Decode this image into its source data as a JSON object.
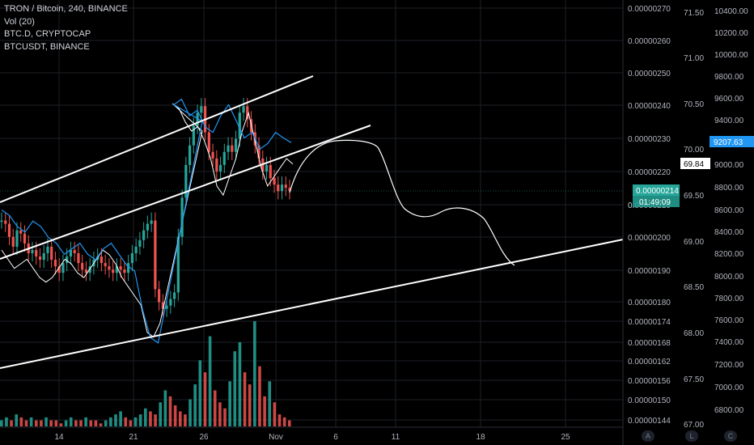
{
  "legend": [
    "TRON / Bitcoin, 240, BINANCE",
    "Vol (20)",
    "BTC.D, CRYPTOCAP",
    "BTCUSDT, BINANCE"
  ],
  "buttons": {
    "auto": "A",
    "log": "L",
    "compare": "C"
  },
  "colors": {
    "up": "#26a69a",
    "down": "#ef5350",
    "btcd": "#ffffff",
    "btcusdt": "#2196f3",
    "grid": "#1c1f26",
    "axis_text": "#b2b5be",
    "badge_green": "#26a69a",
    "badge_blue": "#2196f3"
  },
  "chart_data": {
    "type": "line",
    "x_ticks": [
      "14",
      "21",
      "26",
      "Nov",
      "6",
      "11",
      "18",
      "25"
    ],
    "x_range_days": [
      "Oct 9",
      "Nov 29"
    ],
    "price_axis": {
      "ticks": [
        "0.00000270",
        "0.00000260",
        "0.00000250",
        "0.00000240",
        "0.00000230",
        "0.00000220",
        "0.00000210",
        "0.00000200",
        "0.00000190",
        "0.00000180",
        "0.00000174",
        "0.00000168",
        "0.00000162",
        "0.00000156",
        "0.00000150",
        "0.00000144"
      ],
      "last_price": "0.00000214",
      "countdown": "01:49:09"
    },
    "btcd_axis": {
      "ticks": [
        "71.50",
        "71.00",
        "70.50",
        "70.00",
        "69.50",
        "69.00",
        "68.50",
        "68.00",
        "67.50",
        "67.00"
      ],
      "last_value": "69.84"
    },
    "btcusdt_axis": {
      "ticks": [
        "10400.00",
        "10200.00",
        "10000.00",
        "9800.00",
        "9600.00",
        "9400.00",
        "9200.00",
        "9000.00",
        "8800.00",
        "8600.00",
        "8400.00",
        "8200.00",
        "8000.00",
        "7800.00",
        "7600.00",
        "7400.00",
        "7200.00",
        "7000.00",
        "6800.00"
      ],
      "last_value": "9207.63"
    },
    "price_series": [
      205,
      204,
      200,
      197,
      202,
      201,
      198,
      195,
      196,
      194,
      193,
      195,
      197,
      193,
      191,
      189,
      192,
      194,
      196,
      195,
      192,
      190,
      189,
      191,
      193,
      194,
      192,
      191,
      190,
      189,
      191,
      190,
      189,
      192,
      195,
      197,
      199,
      202,
      204,
      205,
      184,
      180,
      178,
      179,
      181,
      183,
      200,
      212,
      222,
      228,
      234,
      238,
      240,
      232,
      226,
      224,
      220,
      222,
      226,
      228,
      226,
      230,
      238,
      240,
      236,
      232,
      228,
      224,
      220,
      222,
      218,
      216,
      214,
      216,
      215,
      214
    ],
    "btcd_series": [
      68.9,
      68.8,
      68.7,
      68.75,
      68.8,
      68.7,
      68.6,
      68.55,
      68.6,
      68.7,
      68.8,
      68.75,
      68.65,
      68.6,
      68.7,
      68.8,
      68.9,
      68.85,
      68.75,
      68.6,
      68.5,
      68.4,
      68.3,
      68.0,
      67.95,
      68.1,
      70.2,
      70.5,
      70.45,
      70.3,
      70.2,
      70.25,
      70.1,
      69.9,
      69.6,
      69.5,
      69.7,
      69.9,
      70.2,
      70.4,
      70.1,
      69.8,
      69.6,
      69.7,
      69.8,
      69.9,
      69.84
    ],
    "btcusdt_series": [
      8600,
      8550,
      8450,
      8400,
      8500,
      8450,
      8350,
      8300,
      8200,
      8250,
      8300,
      8200,
      8150,
      8250,
      8300,
      8200,
      8100,
      8050,
      7700,
      7450,
      7400,
      9400,
      9550,
      9600,
      9450,
      9500,
      9350,
      9300,
      9450,
      9550,
      9400,
      9250,
      9300,
      9150,
      9200,
      9300,
      9250,
      9207.63
    ],
    "volume": [
      2,
      3,
      2,
      4,
      3,
      2,
      3,
      2,
      2,
      3,
      2,
      2,
      1,
      2,
      3,
      2,
      2,
      3,
      2,
      2,
      1,
      2,
      3,
      4,
      5,
      3,
      2,
      3,
      4,
      6,
      5,
      4,
      8,
      12,
      10,
      7,
      5,
      4,
      9,
      14,
      22,
      18,
      30,
      12,
      8,
      6,
      15,
      25,
      28,
      18,
      14,
      35,
      20,
      10,
      15,
      8,
      4,
      3,
      2
    ]
  }
}
